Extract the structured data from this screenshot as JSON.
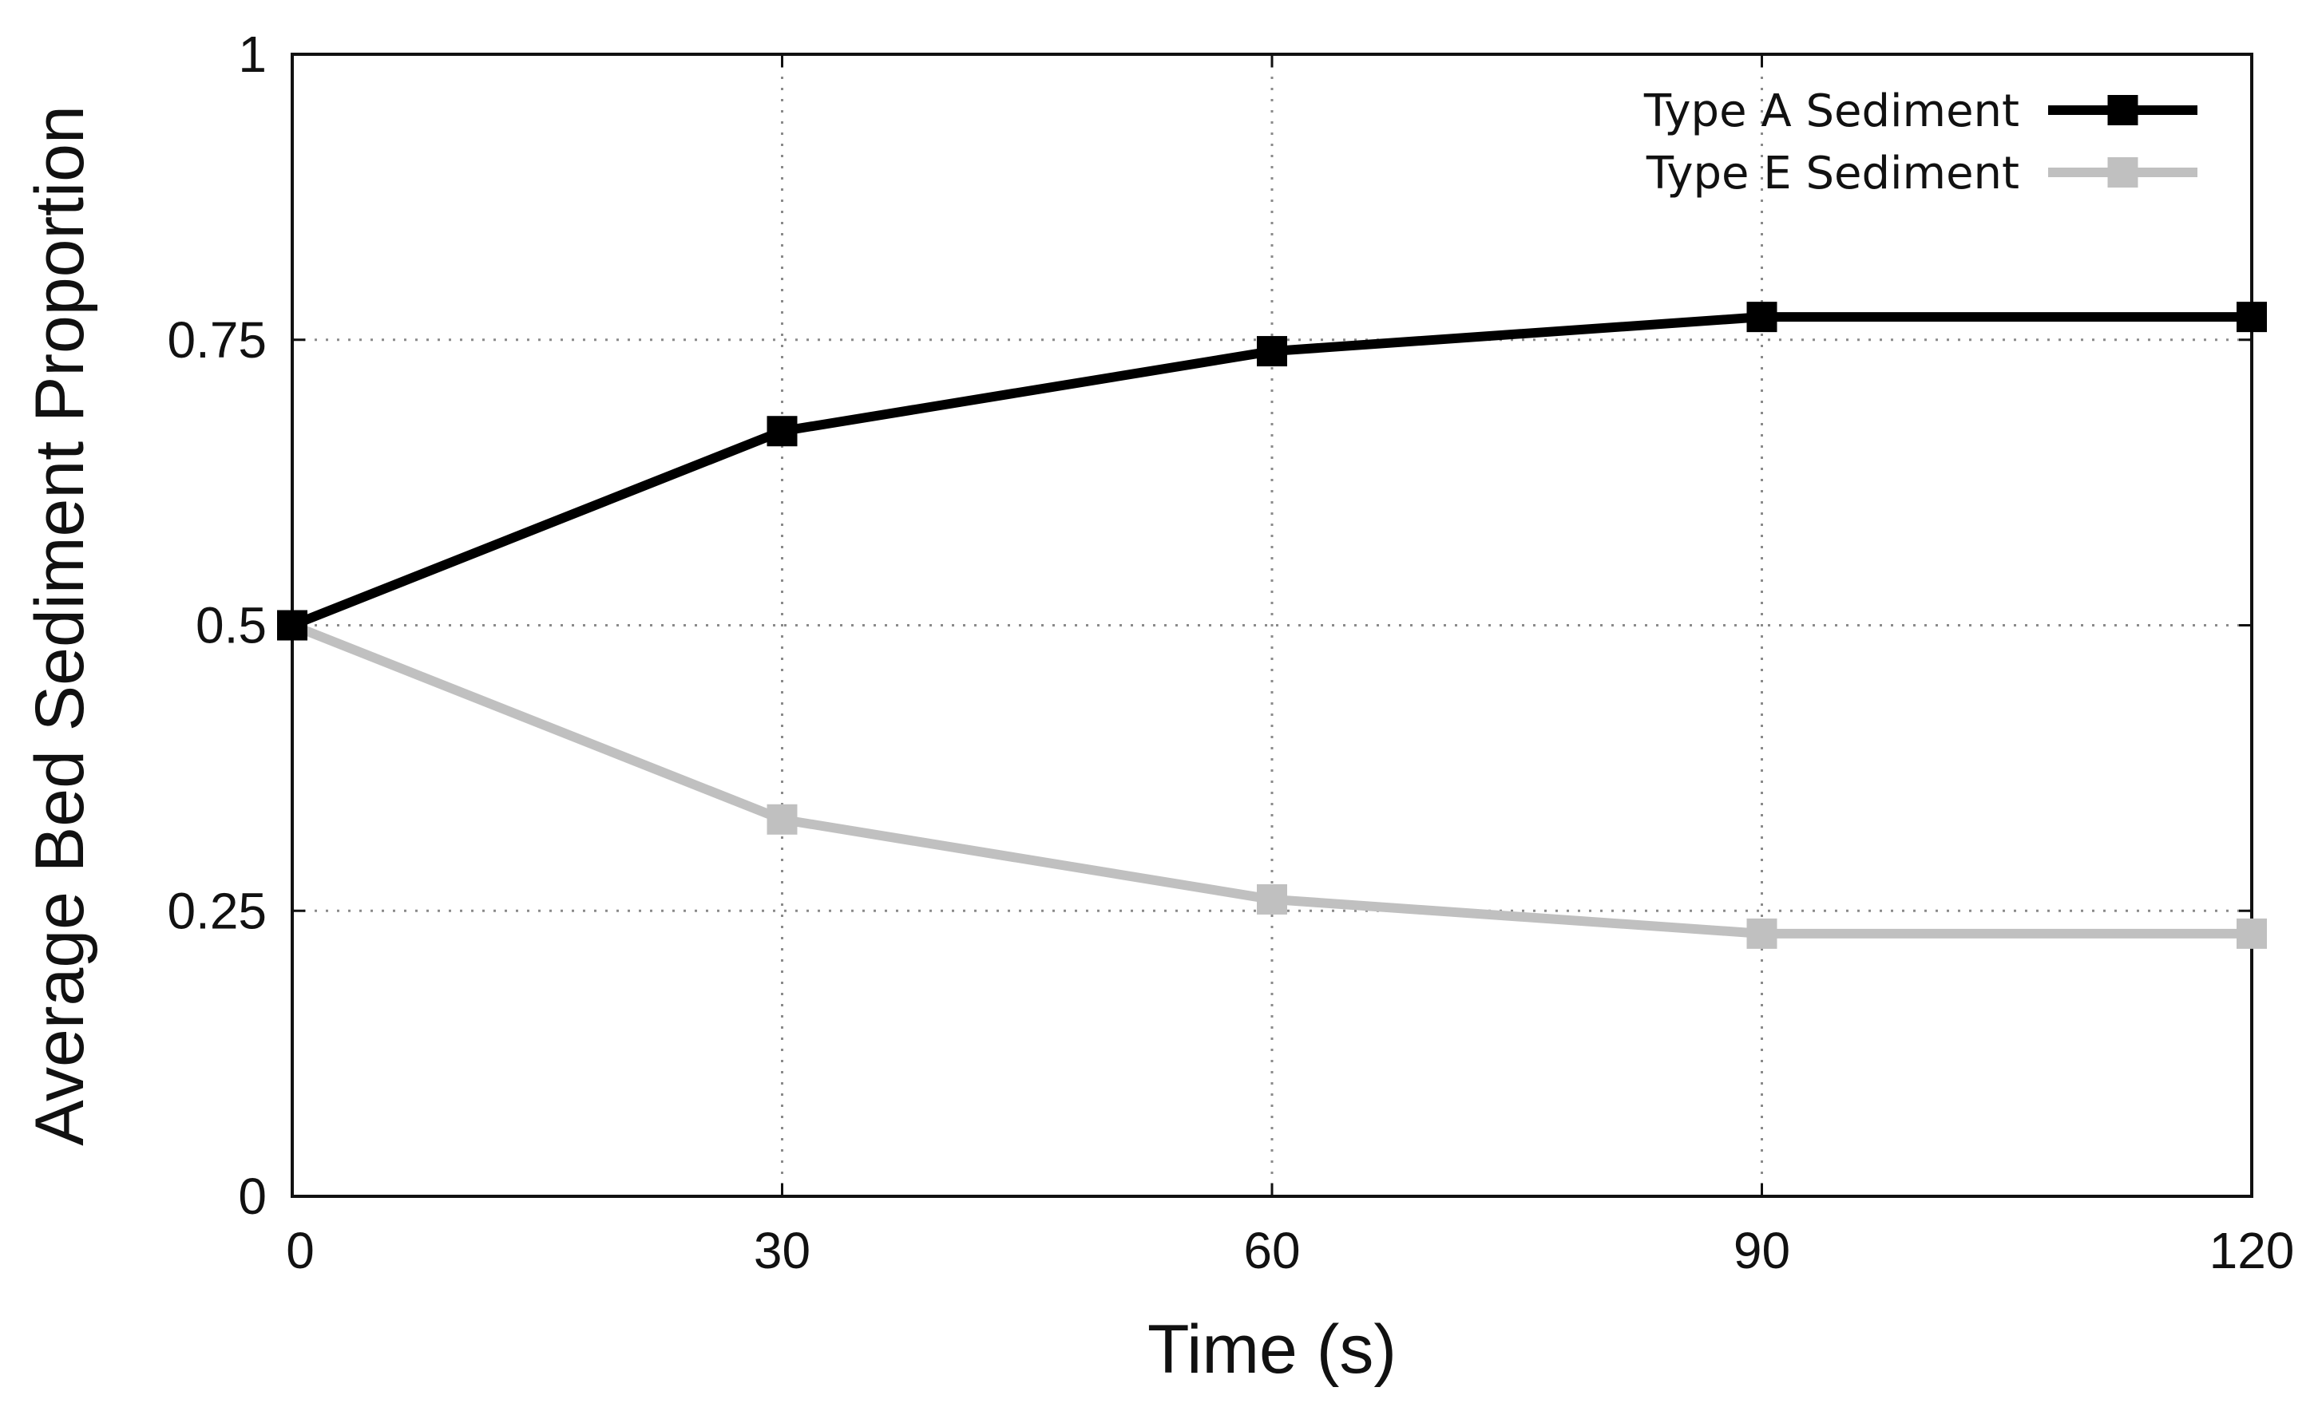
{
  "chart_data": {
    "type": "line",
    "title": "",
    "xlabel": "Time (s)",
    "ylabel": "Average Bed Sediment Proportion",
    "x": [
      0,
      30,
      60,
      90,
      120
    ],
    "xlim": [
      0,
      120
    ],
    "ylim": [
      0,
      1
    ],
    "x_ticks": [
      0,
      30,
      60,
      90,
      120
    ],
    "x_tick_labels": [
      "0",
      "30",
      "60",
      "90",
      "120"
    ],
    "y_ticks": [
      0,
      0.25,
      0.5,
      0.75,
      1
    ],
    "y_tick_labels": [
      "0",
      "0.25",
      "0.5",
      "0.75",
      "1"
    ],
    "grid": true,
    "legend_position": "top-right",
    "series": [
      {
        "name": "Type A Sediment",
        "color": "#000000",
        "marker": "square",
        "values": [
          0.5,
          0.67,
          0.74,
          0.77,
          0.77
        ]
      },
      {
        "name": "Type E Sediment",
        "color": "#c0c0c0",
        "marker": "square",
        "values": [
          0.5,
          0.33,
          0.26,
          0.23,
          0.23
        ]
      }
    ]
  }
}
